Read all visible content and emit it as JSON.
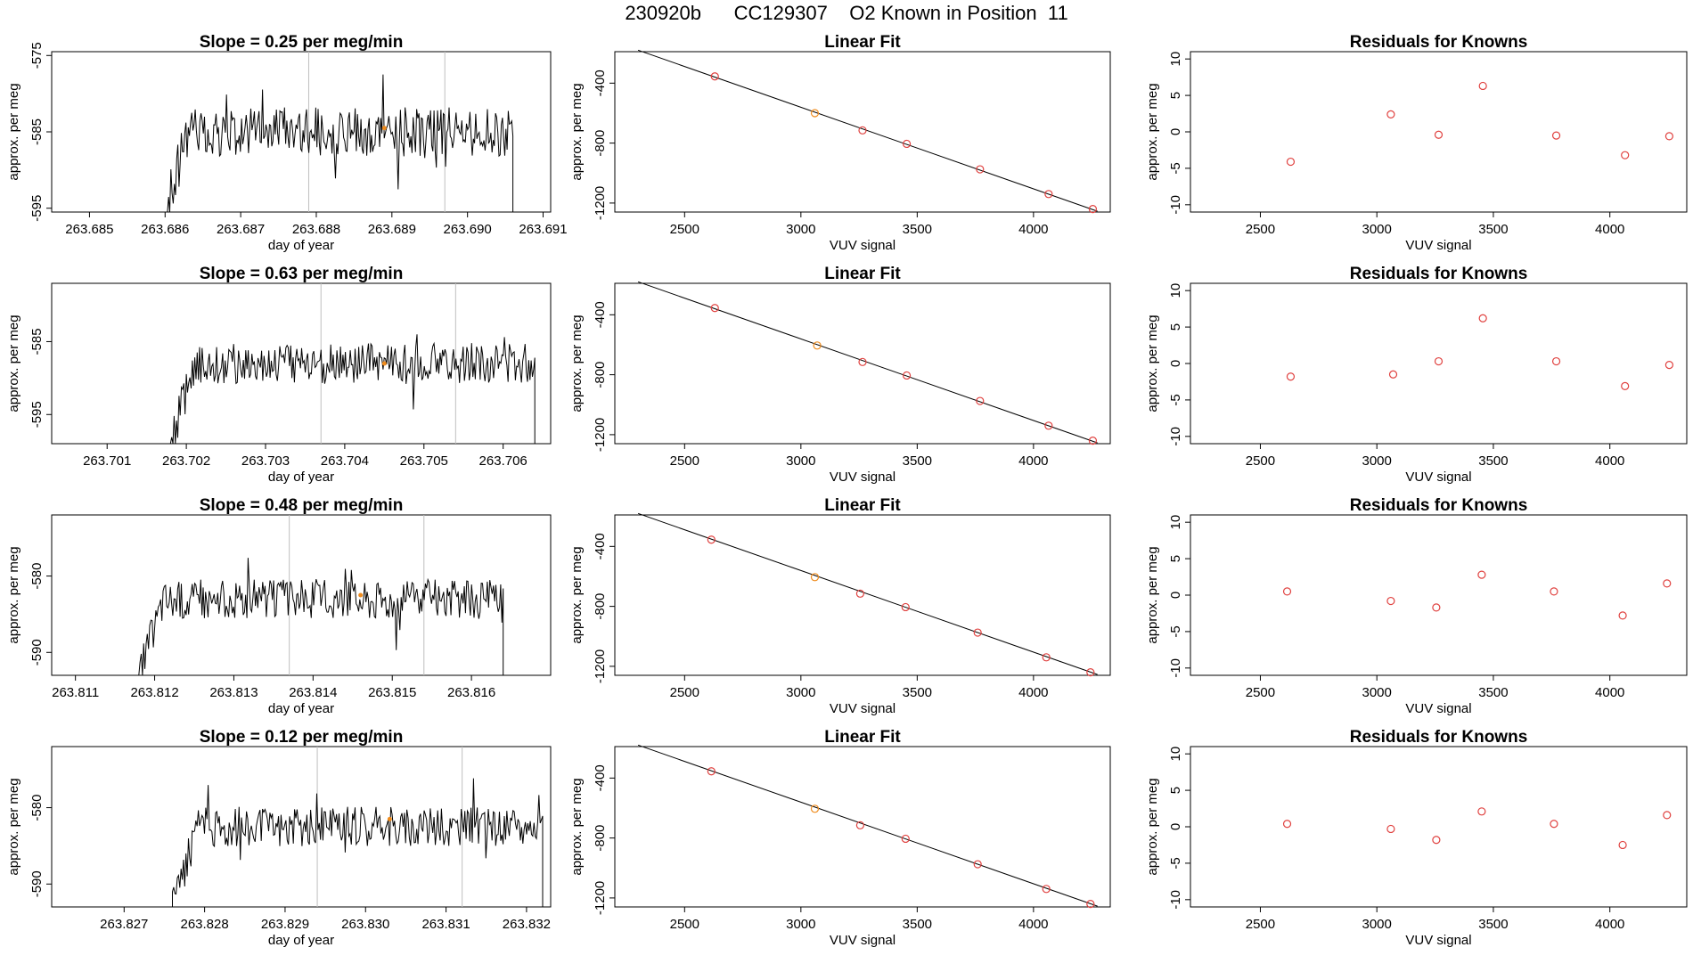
{
  "figure_title": "230920b      CC129307    O2 Known in Position  11",
  "colors": {
    "trace": "#000000",
    "known_marker": "#e0413f",
    "highlight_marker": "#ef8c1e",
    "gridline": "#bfbfbf",
    "fit_line": "#000000"
  },
  "chart_data": [
    {
      "row": 1,
      "timeseries": {
        "type": "line",
        "title": "Slope =  0.25  per meg/min",
        "xlabel": "day of year",
        "ylabel": "approx. per meg",
        "xlim": [
          263.6845,
          263.6911
        ],
        "ylim": [
          -595.5,
          -574.5
        ],
        "xticks": [
          {
            "v": 263.685,
            "label": "263.685"
          },
          {
            "v": 263.686,
            "label": "263.686"
          },
          {
            "v": 263.687,
            "label": "263.687"
          },
          {
            "v": 263.688,
            "label": "263.688"
          },
          {
            "v": 263.689,
            "label": "263.689"
          },
          {
            "v": 263.69,
            "label": "263.690"
          },
          {
            "v": 263.691,
            "label": "263.691"
          }
        ],
        "yticks": [
          {
            "v": -575,
            "label": "-575"
          },
          {
            "v": -585,
            "label": "-585"
          },
          {
            "v": -595,
            "label": "-595"
          }
        ],
        "trace_start": 263.686,
        "trace_end": 263.6906,
        "baseline": -595.5,
        "trace_mean": -585,
        "trace_amplitude": 3.2,
        "vlines": [
          263.6879,
          263.6897
        ],
        "marker": {
          "x": 263.6889,
          "y": -584.5
        }
      },
      "fit": {
        "type": "scatter",
        "title": "Linear Fit",
        "xlabel": "VUV signal",
        "ylabel": "approx. per meg",
        "xlim": [
          2200,
          4330
        ],
        "ylim": [
          -1260,
          -190
        ],
        "xticks": [
          {
            "v": 2500,
            "label": "2500"
          },
          {
            "v": 3000,
            "label": "3000"
          },
          {
            "v": 3500,
            "label": "3500"
          },
          {
            "v": 4000,
            "label": "4000"
          }
        ],
        "yticks": [
          {
            "v": -400,
            "label": "-400"
          },
          {
            "v": -800,
            "label": "-800"
          },
          {
            "v": -1200,
            "label": "-1200"
          }
        ],
        "x": [
          2630,
          3060,
          3265,
          3455,
          3770,
          4065,
          4255
        ],
        "y": [
          -355,
          -600,
          -715,
          -805,
          -975,
          -1140,
          -1240
        ],
        "highlight_index": 1,
        "line": {
          "x": [
            2300,
            4275
          ],
          "y": [
            -180,
            -1255
          ]
        }
      },
      "residuals": {
        "type": "scatter",
        "title": "Residuals for Knowns",
        "xlabel": "VUV signal",
        "ylabel": "approx. per meg",
        "xlim": [
          2200,
          4330
        ],
        "ylim": [
          -11,
          11
        ],
        "xticks": [
          {
            "v": 2500,
            "label": "2500"
          },
          {
            "v": 3000,
            "label": "3000"
          },
          {
            "v": 3500,
            "label": "3500"
          },
          {
            "v": 4000,
            "label": "4000"
          }
        ],
        "yticks": [
          {
            "v": 10,
            "label": "10"
          },
          {
            "v": 5,
            "label": "5"
          },
          {
            "v": 0,
            "label": "0"
          },
          {
            "v": -5,
            "label": "-5"
          },
          {
            "v": -10,
            "label": "-10"
          }
        ],
        "x": [
          2630,
          3060,
          3265,
          3455,
          3770,
          4065,
          4255
        ],
        "y": [
          -4.1,
          2.4,
          -0.4,
          6.3,
          -0.5,
          -3.2,
          -0.6
        ]
      }
    },
    {
      "row": 2,
      "timeseries": {
        "type": "line",
        "title": "Slope =  0.63  per meg/min",
        "xlabel": "day of year",
        "ylabel": "approx. per meg",
        "xlim": [
          263.7003,
          263.7066
        ],
        "ylim": [
          -599,
          -577
        ],
        "xticks": [
          {
            "v": 263.701,
            "label": "263.701"
          },
          {
            "v": 263.702,
            "label": "263.702"
          },
          {
            "v": 263.703,
            "label": "263.703"
          },
          {
            "v": 263.704,
            "label": "263.704"
          },
          {
            "v": 263.705,
            "label": "263.705"
          },
          {
            "v": 263.706,
            "label": "263.706"
          }
        ],
        "yticks": [
          {
            "v": -585,
            "label": "-585"
          },
          {
            "v": -595,
            "label": "-595"
          }
        ],
        "trace_start": 263.7018,
        "trace_end": 263.7064,
        "baseline": -599,
        "trace_mean": -588,
        "trace_amplitude": 2.8,
        "vlines": [
          263.7037,
          263.7054
        ],
        "marker": {
          "x": 263.7045,
          "y": -588
        }
      },
      "fit": {
        "type": "scatter",
        "title": "Linear Fit",
        "xlabel": "VUV signal",
        "ylabel": "approx. per meg",
        "xlim": [
          2200,
          4330
        ],
        "ylim": [
          -1260,
          -190
        ],
        "xticks": [
          {
            "v": 2500,
            "label": "2500"
          },
          {
            "v": 3000,
            "label": "3000"
          },
          {
            "v": 3500,
            "label": "3500"
          },
          {
            "v": 4000,
            "label": "4000"
          }
        ],
        "yticks": [
          {
            "v": -400,
            "label": "-400"
          },
          {
            "v": -800,
            "label": "-800"
          },
          {
            "v": -1200,
            "label": "-1200"
          }
        ],
        "x": [
          2630,
          3070,
          3265,
          3455,
          3770,
          4065,
          4255
        ],
        "y": [
          -355,
          -605,
          -715,
          -805,
          -975,
          -1140,
          -1240
        ],
        "highlight_index": 1,
        "line": {
          "x": [
            2300,
            4275
          ],
          "y": [
            -180,
            -1255
          ]
        }
      },
      "residuals": {
        "type": "scatter",
        "title": "Residuals for Knowns",
        "xlabel": "VUV signal",
        "ylabel": "approx. per meg",
        "xlim": [
          2200,
          4330
        ],
        "ylim": [
          -11,
          11
        ],
        "xticks": [
          {
            "v": 2500,
            "label": "2500"
          },
          {
            "v": 3000,
            "label": "3000"
          },
          {
            "v": 3500,
            "label": "3500"
          },
          {
            "v": 4000,
            "label": "4000"
          }
        ],
        "yticks": [
          {
            "v": 10,
            "label": "10"
          },
          {
            "v": 5,
            "label": "5"
          },
          {
            "v": 0,
            "label": "0"
          },
          {
            "v": -5,
            "label": "-5"
          },
          {
            "v": -10,
            "label": "-10"
          }
        ],
        "x": [
          2630,
          3070,
          3265,
          3455,
          3770,
          4065,
          4255
        ],
        "y": [
          -1.8,
          -1.5,
          0.3,
          6.2,
          0.3,
          -3.1,
          -0.2
        ]
      }
    },
    {
      "row": 3,
      "timeseries": {
        "type": "line",
        "title": "Slope =  0.48  per meg/min",
        "xlabel": "day of year",
        "ylabel": "approx. per meg",
        "xlim": [
          263.8107,
          263.817
        ],
        "ylim": [
          -593,
          -572
        ],
        "xticks": [
          {
            "v": 263.811,
            "label": "263.811"
          },
          {
            "v": 263.812,
            "label": "263.812"
          },
          {
            "v": 263.813,
            "label": "263.813"
          },
          {
            "v": 263.814,
            "label": "263.814"
          },
          {
            "v": 263.815,
            "label": "263.815"
          },
          {
            "v": 263.816,
            "label": "263.816"
          }
        ],
        "yticks": [
          {
            "v": -580,
            "label": "-580"
          },
          {
            "v": -590,
            "label": "-590"
          }
        ],
        "trace_start": 263.8118,
        "trace_end": 263.8164,
        "baseline": -593,
        "trace_mean": -583,
        "trace_amplitude": 2.6,
        "vlines": [
          263.8137,
          263.8154
        ],
        "marker": {
          "x": 263.8146,
          "y": -582.5
        }
      },
      "fit": {
        "type": "scatter",
        "title": "Linear Fit",
        "xlabel": "VUV signal",
        "ylabel": "approx. per meg",
        "xlim": [
          2200,
          4330
        ],
        "ylim": [
          -1260,
          -190
        ],
        "xticks": [
          {
            "v": 2500,
            "label": "2500"
          },
          {
            "v": 3000,
            "label": "3000"
          },
          {
            "v": 3500,
            "label": "3500"
          },
          {
            "v": 4000,
            "label": "4000"
          }
        ],
        "yticks": [
          {
            "v": -400,
            "label": "-400"
          },
          {
            "v": -800,
            "label": "-800"
          },
          {
            "v": -1200,
            "label": "-1200"
          }
        ],
        "x": [
          2615,
          3060,
          3255,
          3450,
          3760,
          4055,
          4245
        ],
        "y": [
          -355,
          -605,
          -715,
          -805,
          -975,
          -1140,
          -1240
        ],
        "highlight_index": 1,
        "line": {
          "x": [
            2300,
            4275
          ],
          "y": [
            -180,
            -1255
          ]
        }
      },
      "residuals": {
        "type": "scatter",
        "title": "Residuals for Knowns",
        "xlabel": "VUV signal",
        "ylabel": "approx. per meg",
        "xlim": [
          2200,
          4330
        ],
        "ylim": [
          -11,
          11
        ],
        "xticks": [
          {
            "v": 2500,
            "label": "2500"
          },
          {
            "v": 3000,
            "label": "3000"
          },
          {
            "v": 3500,
            "label": "3500"
          },
          {
            "v": 4000,
            "label": "4000"
          }
        ],
        "yticks": [
          {
            "v": 10,
            "label": "10"
          },
          {
            "v": 5,
            "label": "5"
          },
          {
            "v": 0,
            "label": "0"
          },
          {
            "v": -5,
            "label": "-5"
          },
          {
            "v": -10,
            "label": "-10"
          }
        ],
        "x": [
          2615,
          3060,
          3255,
          3450,
          3760,
          4055,
          4245
        ],
        "y": [
          0.5,
          -0.8,
          -1.7,
          2.8,
          0.5,
          -2.8,
          1.6
        ]
      }
    },
    {
      "row": 4,
      "timeseries": {
        "type": "line",
        "title": "Slope =  0.12  per meg/min",
        "xlabel": "day of year",
        "ylabel": "approx. per meg",
        "xlim": [
          263.8261,
          263.8323
        ],
        "ylim": [
          -593,
          -572
        ],
        "xticks": [
          {
            "v": 263.827,
            "label": "263.827"
          },
          {
            "v": 263.828,
            "label": "263.828"
          },
          {
            "v": 263.829,
            "label": "263.829"
          },
          {
            "v": 263.83,
            "label": "263.830"
          },
          {
            "v": 263.831,
            "label": "263.831"
          },
          {
            "v": 263.832,
            "label": "263.832"
          }
        ],
        "yticks": [
          {
            "v": -580,
            "label": "-580"
          },
          {
            "v": -590,
            "label": "-590"
          }
        ],
        "trace_start": 263.8276,
        "trace_end": 263.8322,
        "baseline": -593,
        "trace_mean": -582.5,
        "trace_amplitude": 2.6,
        "vlines": [
          263.8294,
          263.8312
        ],
        "marker": {
          "x": 263.8303,
          "y": -581.5
        }
      },
      "fit": {
        "type": "scatter",
        "title": "Linear Fit",
        "xlabel": "VUV signal",
        "ylabel": "approx. per meg",
        "xlim": [
          2200,
          4330
        ],
        "ylim": [
          -1260,
          -190
        ],
        "xticks": [
          {
            "v": 2500,
            "label": "2500"
          },
          {
            "v": 3000,
            "label": "3000"
          },
          {
            "v": 3500,
            "label": "3500"
          },
          {
            "v": 4000,
            "label": "4000"
          }
        ],
        "yticks": [
          {
            "v": -400,
            "label": "-400"
          },
          {
            "v": -800,
            "label": "-800"
          },
          {
            "v": -1200,
            "label": "-1200"
          }
        ],
        "x": [
          2615,
          3060,
          3255,
          3450,
          3760,
          4055,
          4245
        ],
        "y": [
          -355,
          -605,
          -715,
          -805,
          -975,
          -1140,
          -1240
        ],
        "highlight_index": 1,
        "line": {
          "x": [
            2300,
            4275
          ],
          "y": [
            -180,
            -1255
          ]
        }
      },
      "residuals": {
        "type": "scatter",
        "title": "Residuals for Knowns",
        "xlabel": "VUV signal",
        "ylabel": "approx. per meg",
        "xlim": [
          2200,
          4330
        ],
        "ylim": [
          -11,
          11
        ],
        "xticks": [
          {
            "v": 2500,
            "label": "2500"
          },
          {
            "v": 3000,
            "label": "3000"
          },
          {
            "v": 3500,
            "label": "3500"
          },
          {
            "v": 4000,
            "label": "4000"
          }
        ],
        "yticks": [
          {
            "v": 10,
            "label": "10"
          },
          {
            "v": 5,
            "label": "5"
          },
          {
            "v": 0,
            "label": "0"
          },
          {
            "v": -5,
            "label": "-5"
          },
          {
            "v": -10,
            "label": "-10"
          }
        ],
        "x": [
          2615,
          3060,
          3255,
          3450,
          3760,
          4055,
          4245
        ],
        "y": [
          0.4,
          -0.3,
          -1.8,
          2.1,
          0.4,
          -2.5,
          1.6
        ]
      }
    }
  ]
}
